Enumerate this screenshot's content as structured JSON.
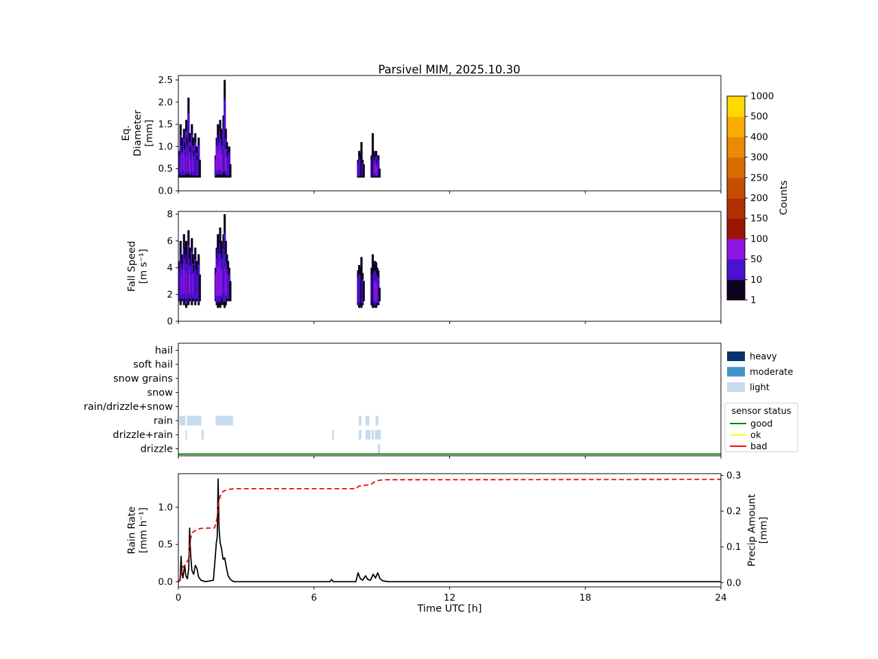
{
  "figure": {
    "title": "Parsivel MIM, 2025.10.30",
    "xlabel": "Time UTC [h]"
  },
  "axes": {
    "xlim": [
      0,
      24
    ],
    "xticks": [
      {
        "value": 0,
        "label": "0"
      },
      {
        "value": 6,
        "label": "6"
      },
      {
        "value": 12,
        "label": "12"
      },
      {
        "value": 18,
        "label": "18"
      },
      {
        "value": 24,
        "label": "24"
      }
    ]
  },
  "colorbar": {
    "label": "Counts",
    "tick_labels": [
      "1",
      "10",
      "50",
      "100",
      "150",
      "200",
      "250",
      "300",
      "400",
      "500",
      "1000"
    ],
    "segment_colors": [
      "#10031f",
      "#4a11d0",
      "#9013e0",
      "#9b1600",
      "#b23000",
      "#c64e00",
      "#d96a00",
      "#ea8a00",
      "#f8ad00",
      "#ffd900"
    ]
  },
  "legend_intensity": {
    "items": [
      {
        "label": "heavy",
        "color": "#08306b"
      },
      {
        "label": "moderate",
        "color": "#4292c6"
      },
      {
        "label": "light",
        "color": "#c6dbef"
      }
    ]
  },
  "legend_sensor": {
    "title": "sensor status",
    "items": [
      {
        "label": "good",
        "color": "#008000"
      },
      {
        "label": "ok",
        "color": "#ffff00"
      },
      {
        "label": "bad",
        "color": "#ff0000"
      }
    ]
  },
  "chart_data": [
    {
      "type": "heatmap",
      "name": "eq_diameter",
      "ylabel_lines": [
        "Eq.",
        "Diameter",
        "[mm]"
      ],
      "ylim": [
        0,
        2.6
      ],
      "yticks": [
        {
          "value": 0.0,
          "label": "0.0"
        },
        {
          "value": 0.5,
          "label": "0.5"
        },
        {
          "value": 1.0,
          "label": "1.0"
        },
        {
          "value": 1.5,
          "label": "1.5"
        },
        {
          "value": 2.0,
          "label": "2.0"
        },
        {
          "value": 2.5,
          "label": "2.5"
        }
      ],
      "strips": [
        [
          0.05,
          0.3,
          0.9,
          1
        ],
        [
          0.1,
          0.3,
          1.5,
          1
        ],
        [
          0.15,
          0.3,
          1.2,
          2
        ],
        [
          0.2,
          0.3,
          1.0,
          1
        ],
        [
          0.25,
          0.3,
          1.4,
          2
        ],
        [
          0.3,
          0.3,
          1.1,
          2
        ],
        [
          0.35,
          0.3,
          1.6,
          1
        ],
        [
          0.4,
          0.3,
          1.2,
          2
        ],
        [
          0.45,
          0.3,
          2.1,
          1
        ],
        [
          0.5,
          0.3,
          1.3,
          2
        ],
        [
          0.55,
          0.3,
          1.0,
          2
        ],
        [
          0.6,
          0.3,
          1.5,
          1
        ],
        [
          0.65,
          0.3,
          1.2,
          2
        ],
        [
          0.7,
          0.3,
          0.9,
          1
        ],
        [
          0.75,
          0.3,
          1.3,
          1
        ],
        [
          0.8,
          0.3,
          1.0,
          1
        ],
        [
          0.85,
          0.3,
          0.8,
          1
        ],
        [
          0.9,
          0.3,
          1.2,
          1
        ],
        [
          0.95,
          0.3,
          0.7,
          0
        ],
        [
          1.65,
          0.3,
          0.8,
          1
        ],
        [
          1.7,
          0.3,
          1.2,
          2
        ],
        [
          1.75,
          0.3,
          1.5,
          2
        ],
        [
          1.8,
          0.3,
          1.3,
          2
        ],
        [
          1.85,
          0.3,
          1.6,
          2
        ],
        [
          1.9,
          0.3,
          1.4,
          2
        ],
        [
          1.95,
          0.3,
          1.2,
          2
        ],
        [
          2.0,
          0.3,
          1.7,
          1
        ],
        [
          2.05,
          0.3,
          2.5,
          1
        ],
        [
          2.1,
          0.3,
          1.4,
          2
        ],
        [
          2.15,
          0.3,
          1.1,
          2
        ],
        [
          2.2,
          0.3,
          0.9,
          1
        ],
        [
          2.25,
          0.3,
          1.0,
          1
        ],
        [
          2.3,
          0.3,
          0.6,
          0
        ],
        [
          7.95,
          0.3,
          0.7,
          1
        ],
        [
          8.0,
          0.3,
          0.9,
          1
        ],
        [
          8.05,
          0.3,
          0.8,
          1
        ],
        [
          8.1,
          0.3,
          1.1,
          0
        ],
        [
          8.15,
          0.3,
          0.7,
          1
        ],
        [
          8.2,
          0.3,
          0.6,
          0
        ],
        [
          8.55,
          0.3,
          0.8,
          1
        ],
        [
          8.6,
          0.3,
          1.3,
          0
        ],
        [
          8.65,
          0.3,
          0.9,
          1
        ],
        [
          8.7,
          0.3,
          0.8,
          2
        ],
        [
          8.75,
          0.3,
          0.9,
          2
        ],
        [
          8.8,
          0.3,
          0.7,
          2
        ],
        [
          8.85,
          0.3,
          0.8,
          1
        ],
        [
          8.9,
          0.3,
          0.5,
          0
        ]
      ]
    },
    {
      "type": "heatmap",
      "name": "fall_speed",
      "ylabel_lines": [
        "Fall Speed",
        "[m s⁻¹]"
      ],
      "ylim": [
        0,
        8.2
      ],
      "yticks": [
        {
          "value": 0,
          "label": "0"
        },
        {
          "value": 2,
          "label": "2"
        },
        {
          "value": 4,
          "label": "4"
        },
        {
          "value": 6,
          "label": "6"
        },
        {
          "value": 8,
          "label": "8"
        }
      ],
      "strips": [
        [
          0.05,
          1.5,
          4.5,
          1
        ],
        [
          0.1,
          1.2,
          6.0,
          1
        ],
        [
          0.15,
          1.5,
          5.0,
          2
        ],
        [
          0.2,
          1.5,
          4.5,
          1
        ],
        [
          0.25,
          1.2,
          6.5,
          2
        ],
        [
          0.3,
          1.5,
          5.5,
          2
        ],
        [
          0.35,
          1.0,
          6.0,
          1
        ],
        [
          0.4,
          1.5,
          5.0,
          2
        ],
        [
          0.45,
          1.2,
          6.8,
          1
        ],
        [
          0.5,
          1.5,
          5.5,
          2
        ],
        [
          0.55,
          1.5,
          4.8,
          2
        ],
        [
          0.6,
          1.2,
          6.2,
          1
        ],
        [
          0.65,
          1.5,
          5.0,
          2
        ],
        [
          0.7,
          1.5,
          4.2,
          1
        ],
        [
          0.75,
          1.2,
          5.5,
          1
        ],
        [
          0.8,
          1.5,
          4.5,
          1
        ],
        [
          0.85,
          1.5,
          4.0,
          1
        ],
        [
          0.9,
          1.2,
          5.0,
          1
        ],
        [
          0.95,
          1.5,
          3.5,
          0
        ],
        [
          1.65,
          1.5,
          4.0,
          1
        ],
        [
          1.7,
          1.2,
          5.5,
          2
        ],
        [
          1.75,
          1.0,
          6.5,
          2
        ],
        [
          1.8,
          1.2,
          6.0,
          2
        ],
        [
          1.85,
          1.0,
          7.0,
          2
        ],
        [
          1.9,
          1.2,
          6.0,
          2
        ],
        [
          1.95,
          1.5,
          5.5,
          2
        ],
        [
          2.0,
          1.2,
          6.5,
          1
        ],
        [
          2.05,
          1.0,
          8.0,
          1
        ],
        [
          2.1,
          1.2,
          6.0,
          2
        ],
        [
          2.15,
          1.5,
          5.0,
          2
        ],
        [
          2.2,
          1.5,
          4.5,
          1
        ],
        [
          2.25,
          1.5,
          4.0,
          1
        ],
        [
          2.3,
          1.5,
          3.0,
          0
        ],
        [
          7.95,
          1.2,
          3.8,
          1
        ],
        [
          8.0,
          1.0,
          4.2,
          1
        ],
        [
          8.05,
          1.2,
          4.0,
          1
        ],
        [
          8.1,
          1.0,
          4.8,
          0
        ],
        [
          8.15,
          1.2,
          3.6,
          1
        ],
        [
          8.2,
          1.5,
          3.0,
          0
        ],
        [
          8.55,
          1.2,
          4.0,
          1
        ],
        [
          8.6,
          1.0,
          5.0,
          0
        ],
        [
          8.65,
          1.2,
          4.2,
          1
        ],
        [
          8.7,
          1.0,
          4.5,
          2
        ],
        [
          8.75,
          1.0,
          4.4,
          2
        ],
        [
          8.8,
          1.2,
          4.0,
          2
        ],
        [
          8.85,
          1.2,
          3.8,
          1
        ],
        [
          8.9,
          1.5,
          2.5,
          0
        ]
      ]
    },
    {
      "type": "timeline",
      "name": "precip_type",
      "categories": [
        "hail",
        "soft hail",
        "snow grains",
        "snow",
        "rain/drizzle+snow",
        "rain",
        "drizzle+rain",
        "drizzle"
      ],
      "blocks": [
        {
          "row": "rain",
          "t0": 0.05,
          "t1": 0.32,
          "intensity": "light"
        },
        {
          "row": "drizzle+rain",
          "t0": 0.32,
          "t1": 0.38,
          "intensity": "light"
        },
        {
          "row": "rain",
          "t0": 0.38,
          "t1": 1.02,
          "intensity": "light"
        },
        {
          "row": "drizzle+rain",
          "t0": 1.02,
          "t1": 1.12,
          "intensity": "light"
        },
        {
          "row": "rain",
          "t0": 1.65,
          "t1": 2.42,
          "intensity": "light"
        },
        {
          "row": "drizzle+rain",
          "t0": 6.8,
          "t1": 6.88,
          "intensity": "light"
        },
        {
          "row": "rain",
          "t0": 7.98,
          "t1": 8.1,
          "intensity": "light"
        },
        {
          "row": "drizzle+rain",
          "t0": 7.98,
          "t1": 8.1,
          "intensity": "light"
        },
        {
          "row": "rain",
          "t0": 8.28,
          "t1": 8.45,
          "intensity": "light"
        },
        {
          "row": "drizzle+rain",
          "t0": 8.28,
          "t1": 8.5,
          "intensity": "light"
        },
        {
          "row": "drizzle+rain",
          "t0": 8.55,
          "t1": 8.65,
          "intensity": "light"
        },
        {
          "row": "rain",
          "t0": 8.72,
          "t1": 8.85,
          "intensity": "light"
        },
        {
          "row": "drizzle+rain",
          "t0": 8.7,
          "t1": 8.95,
          "intensity": "light"
        },
        {
          "row": "drizzle",
          "t0": 8.82,
          "t1": 8.92,
          "intensity": "light"
        }
      ],
      "sensor_status_line": {
        "status": "good",
        "color": "#008000"
      }
    },
    {
      "type": "line",
      "name": "rain_rate_and_precip_amount",
      "ylabel_lines": [
        "Rain Rate",
        "[mm h⁻¹]"
      ],
      "ylim": [
        -0.07,
        1.45
      ],
      "yticks": [
        {
          "value": 0.0,
          "label": "0.0"
        },
        {
          "value": 0.5,
          "label": "0.5"
        },
        {
          "value": 1.0,
          "label": "1.0"
        }
      ],
      "right_axis": {
        "ylabel_lines": [
          "Precip Amount",
          "[mm]"
        ],
        "ylim": [
          -0.012,
          0.305
        ],
        "yticks": [
          {
            "value": 0.0,
            "label": "0.0"
          },
          {
            "value": 0.1,
            "label": "0.1"
          },
          {
            "value": 0.2,
            "label": "0.2"
          },
          {
            "value": 0.3,
            "label": "0.3"
          }
        ]
      },
      "series": [
        {
          "name": "rain rate",
          "axis": "left",
          "color": "#000000",
          "dash": "",
          "width": 1.8,
          "points": [
            [
              0,
              0.0
            ],
            [
              0.08,
              0.02
            ],
            [
              0.12,
              0.34
            ],
            [
              0.16,
              0.12
            ],
            [
              0.2,
              0.05
            ],
            [
              0.28,
              0.22
            ],
            [
              0.33,
              0.08
            ],
            [
              0.4,
              0.04
            ],
            [
              0.46,
              0.18
            ],
            [
              0.5,
              0.72
            ],
            [
              0.54,
              0.38
            ],
            [
              0.6,
              0.15
            ],
            [
              0.68,
              0.1
            ],
            [
              0.75,
              0.22
            ],
            [
              0.82,
              0.18
            ],
            [
              0.9,
              0.06
            ],
            [
              1.0,
              0.02
            ],
            [
              1.2,
              0.0
            ],
            [
              1.55,
              0.02
            ],
            [
              1.62,
              0.28
            ],
            [
              1.68,
              0.52
            ],
            [
              1.72,
              0.6
            ],
            [
              1.76,
              1.38
            ],
            [
              1.8,
              0.72
            ],
            [
              1.85,
              0.52
            ],
            [
              1.9,
              0.46
            ],
            [
              1.98,
              0.3
            ],
            [
              2.05,
              0.32
            ],
            [
              2.12,
              0.2
            ],
            [
              2.2,
              0.08
            ],
            [
              2.3,
              0.03
            ],
            [
              2.45,
              0.0
            ],
            [
              6.7,
              0.0
            ],
            [
              6.78,
              0.03
            ],
            [
              6.85,
              0.0
            ],
            [
              7.85,
              0.0
            ],
            [
              7.95,
              0.12
            ],
            [
              8.05,
              0.04
            ],
            [
              8.15,
              0.02
            ],
            [
              8.28,
              0.08
            ],
            [
              8.38,
              0.03
            ],
            [
              8.5,
              0.02
            ],
            [
              8.62,
              0.1
            ],
            [
              8.72,
              0.05
            ],
            [
              8.82,
              0.12
            ],
            [
              8.92,
              0.04
            ],
            [
              9.05,
              0.01
            ],
            [
              9.3,
              0.0
            ],
            [
              24,
              0.0
            ]
          ]
        },
        {
          "name": "precip amount",
          "axis": "right",
          "color": "#ee0000",
          "dash": "7 4",
          "width": 1.8,
          "points": [
            [
              0,
              0.0
            ],
            [
              0.1,
              0.015
            ],
            [
              0.15,
              0.04
            ],
            [
              0.3,
              0.05
            ],
            [
              0.45,
              0.065
            ],
            [
              0.5,
              0.1
            ],
            [
              0.55,
              0.125
            ],
            [
              0.62,
              0.14
            ],
            [
              0.8,
              0.148
            ],
            [
              1.0,
              0.152
            ],
            [
              1.6,
              0.153
            ],
            [
              1.68,
              0.17
            ],
            [
              1.73,
              0.19
            ],
            [
              1.78,
              0.225
            ],
            [
              1.88,
              0.248
            ],
            [
              2.0,
              0.256
            ],
            [
              2.2,
              0.261
            ],
            [
              2.5,
              0.263
            ],
            [
              7.85,
              0.263
            ],
            [
              7.98,
              0.27
            ],
            [
              8.15,
              0.272
            ],
            [
              8.5,
              0.274
            ],
            [
              8.65,
              0.281
            ],
            [
              8.85,
              0.286
            ],
            [
              9.1,
              0.288
            ],
            [
              24,
              0.289
            ]
          ]
        }
      ]
    }
  ]
}
